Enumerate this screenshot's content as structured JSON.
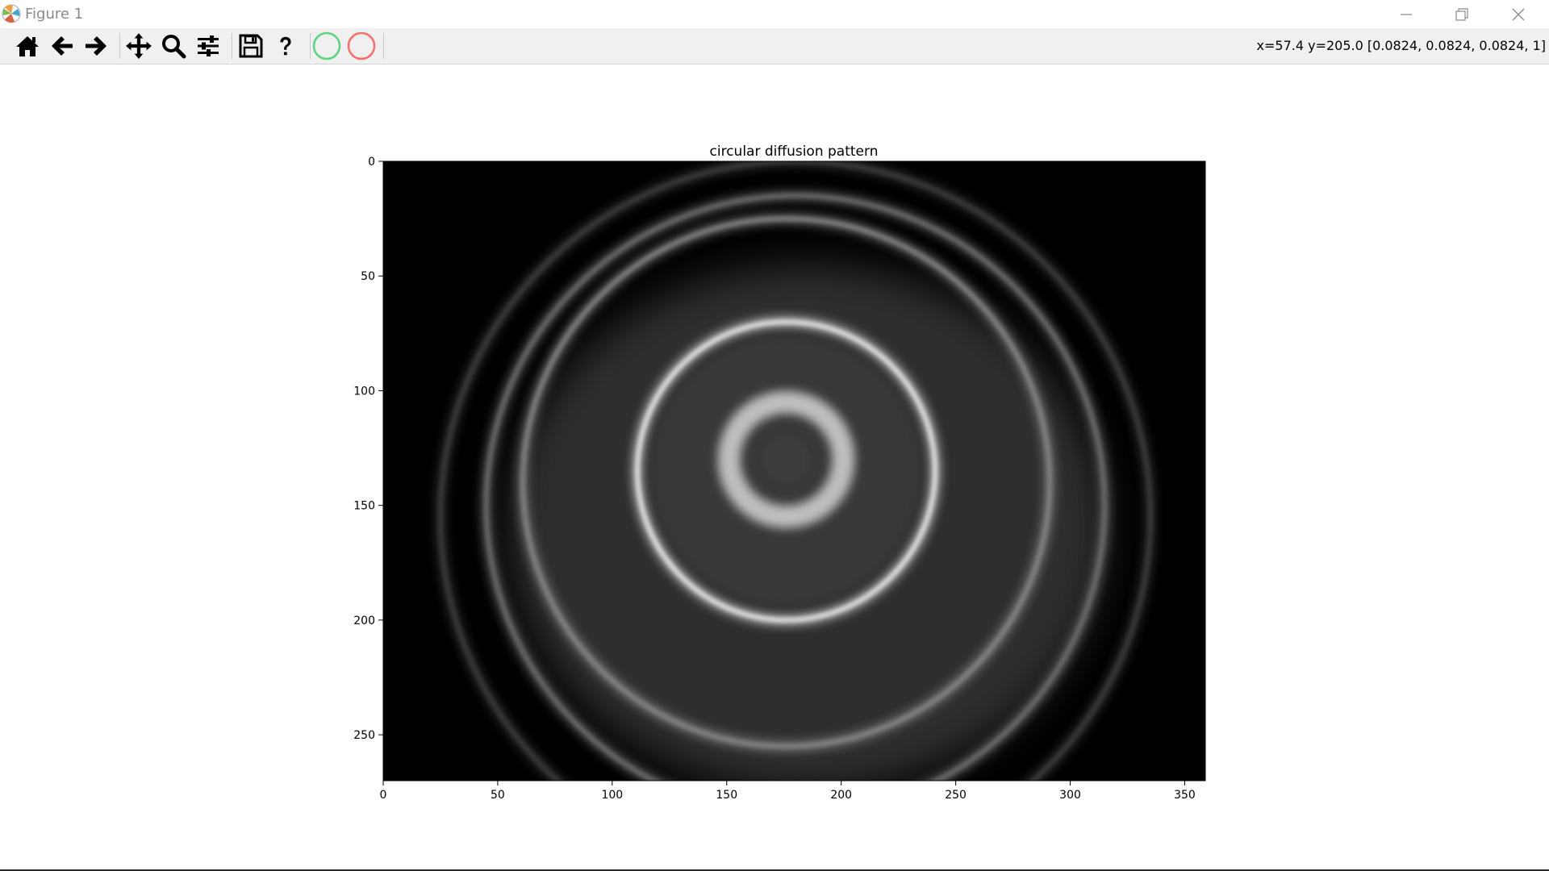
{
  "window": {
    "title": "Figure 1",
    "minimize_icon": "minimize-icon",
    "restore_icon": "restore-icon",
    "close_icon": "close-icon"
  },
  "toolbar": {
    "buttons": [
      {
        "name": "home-button",
        "icon": "home-icon"
      },
      {
        "name": "back-button",
        "icon": "arrow-left-icon"
      },
      {
        "name": "forward-button",
        "icon": "arrow-right-icon"
      },
      {
        "name": "pan-button",
        "icon": "move-icon"
      },
      {
        "name": "zoom-button",
        "icon": "magnifier-icon"
      },
      {
        "name": "configure-subplots-button",
        "icon": "sliders-icon"
      },
      {
        "name": "save-button",
        "icon": "floppy-disk-icon"
      },
      {
        "name": "help-button",
        "icon": "question-mark-icon"
      },
      {
        "name": "green-circle-button",
        "icon": "green-circle-icon",
        "color": "#5ad67d"
      },
      {
        "name": "red-circle-button",
        "icon": "red-circle-icon",
        "color": "#ff6b6b"
      }
    ],
    "coords_text": "x=57.4 y=205.0 [0.0824, 0.0824, 0.0824, 1]"
  },
  "chart_data": {
    "type": "heatmap",
    "title": "circular diffusion pattern",
    "colormap": "gray",
    "xlim": [
      0,
      359
    ],
    "ylim": [
      270,
      0
    ],
    "x_ticks": [
      0,
      50,
      100,
      150,
      200,
      250,
      300,
      350
    ],
    "y_ticks": [
      0,
      50,
      100,
      150,
      200,
      250
    ],
    "rings": [
      {
        "cx": 176,
        "cy": 135,
        "r": 65,
        "intensity": 0.95
      },
      {
        "cx": 176,
        "cy": 140,
        "r": 115,
        "intensity": 0.55
      },
      {
        "cx": 180,
        "cy": 150,
        "r": 135,
        "intensity": 0.45
      },
      {
        "cx": 180,
        "cy": 155,
        "r": 155,
        "intensity": 0.25
      }
    ],
    "core": {
      "cx": 176,
      "cy": 130,
      "r": 25,
      "intensity": 0.75
    }
  }
}
